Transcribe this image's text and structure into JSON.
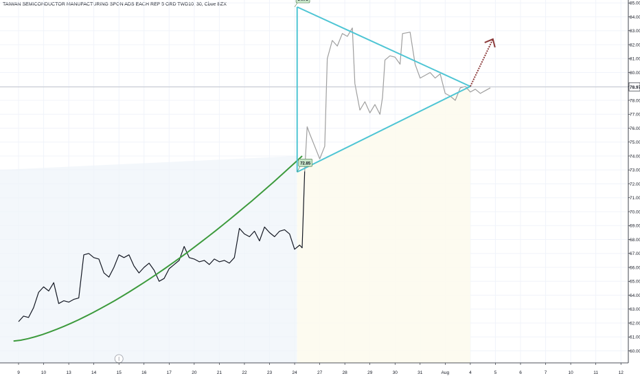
{
  "chart_data": {
    "type": "line",
    "title": "TAIWAN SEMICONDUCTOR MANUFACTURING SPON ADS EACH REP 5 ORD TWD10, 30, Cboe BZX",
    "ylim": [
      59.8,
      85.6
    ],
    "y_ticks": [
      "60.00",
      "61.00",
      "62.00",
      "63.00",
      "64.00",
      "65.00",
      "66.00",
      "67.00",
      "68.00",
      "69.00",
      "70.00",
      "71.00",
      "72.00",
      "73.00",
      "74.00",
      "75.00",
      "76.00",
      "77.00",
      "78.00",
      "79.00",
      "80.00",
      "81.00",
      "82.00",
      "83.00",
      "84.00",
      "85.00"
    ],
    "x_ticks": [
      "9",
      "10",
      "13",
      "14",
      "15",
      "16",
      "17",
      "20",
      "21",
      "22",
      "23",
      "24",
      "27",
      "28",
      "29",
      "30",
      "31",
      "Aug",
      "4",
      "5",
      "6",
      "7",
      "10",
      "11",
      "12"
    ],
    "current_price_label": "78.97",
    "current_price": 78.97,
    "flags": [
      {
        "label": "84.71",
        "index": 11,
        "price": 84.71
      },
      {
        "label": "72.85",
        "index": 11.1,
        "price": 72.85
      }
    ],
    "series": [
      {
        "style": "dark",
        "points": [
          [
            0,
            62.1
          ],
          [
            0.2,
            62.5
          ],
          [
            0.4,
            62.4
          ],
          [
            0.6,
            63.1
          ],
          [
            0.8,
            64.2
          ],
          [
            1.0,
            64.6
          ],
          [
            1.2,
            64.3
          ],
          [
            1.4,
            64.9
          ],
          [
            1.6,
            63.4
          ],
          [
            1.8,
            63.6
          ],
          [
            2.0,
            63.5
          ],
          [
            2.2,
            63.7
          ],
          [
            2.4,
            63.8
          ],
          [
            2.6,
            66.9
          ],
          [
            2.8,
            67.0
          ],
          [
            3.0,
            66.7
          ],
          [
            3.2,
            66.6
          ],
          [
            3.4,
            65.6
          ],
          [
            3.6,
            65.3
          ],
          [
            3.8,
            66.0
          ],
          [
            4.0,
            66.9
          ],
          [
            4.2,
            66.7
          ],
          [
            4.4,
            66.9
          ],
          [
            4.6,
            66.1
          ],
          [
            4.8,
            65.6
          ],
          [
            5.0,
            66.0
          ],
          [
            5.2,
            66.3
          ],
          [
            5.4,
            65.8
          ],
          [
            5.6,
            65.0
          ],
          [
            5.8,
            65.2
          ],
          [
            6.0,
            65.9
          ],
          [
            6.2,
            66.2
          ],
          [
            6.4,
            66.5
          ],
          [
            6.6,
            67.5
          ],
          [
            6.8,
            66.7
          ],
          [
            7.0,
            66.6
          ],
          [
            7.2,
            66.4
          ],
          [
            7.4,
            66.5
          ],
          [
            7.6,
            66.2
          ],
          [
            7.8,
            66.6
          ],
          [
            8.0,
            66.4
          ],
          [
            8.2,
            66.5
          ],
          [
            8.4,
            66.3
          ],
          [
            8.6,
            66.7
          ],
          [
            8.8,
            68.8
          ],
          [
            9.0,
            68.4
          ],
          [
            9.2,
            68.2
          ],
          [
            9.4,
            68.6
          ],
          [
            9.6,
            67.9
          ],
          [
            9.8,
            68.9
          ],
          [
            10.0,
            68.5
          ],
          [
            10.2,
            68.2
          ],
          [
            10.4,
            68.6
          ],
          [
            10.6,
            68.7
          ],
          [
            10.8,
            68.4
          ],
          [
            11.0,
            67.3
          ],
          [
            11.2,
            67.6
          ],
          [
            11.3,
            67.4
          ],
          [
            11.4,
            72.9
          ]
        ]
      },
      {
        "style": "light",
        "points": [
          [
            11.4,
            72.9
          ],
          [
            11.5,
            76.1
          ],
          [
            11.6,
            75.6
          ],
          [
            11.8,
            74.7
          ],
          [
            12.0,
            73.8
          ],
          [
            12.2,
            74.7
          ],
          [
            12.3,
            81.0
          ],
          [
            12.5,
            82.3
          ],
          [
            12.7,
            81.9
          ],
          [
            12.9,
            82.8
          ],
          [
            13.1,
            82.6
          ],
          [
            13.3,
            83.2
          ],
          [
            13.4,
            79.2
          ],
          [
            13.6,
            77.3
          ],
          [
            13.8,
            77.9
          ],
          [
            14.0,
            77.1
          ],
          [
            14.2,
            77.7
          ],
          [
            14.4,
            77.0
          ],
          [
            14.5,
            78.2
          ],
          [
            14.6,
            80.9
          ],
          [
            14.8,
            81.2
          ],
          [
            15.0,
            81.1
          ],
          [
            15.2,
            80.6
          ],
          [
            15.3,
            82.8
          ],
          [
            15.6,
            82.9
          ],
          [
            15.8,
            80.6
          ],
          [
            16.0,
            79.6
          ],
          [
            16.2,
            79.8
          ],
          [
            16.4,
            80.0
          ],
          [
            16.6,
            79.6
          ],
          [
            16.8,
            79.9
          ],
          [
            17.0,
            78.5
          ],
          [
            17.2,
            78.3
          ],
          [
            17.4,
            78.0
          ],
          [
            17.6,
            78.9
          ],
          [
            17.8,
            79.0
          ],
          [
            18.0,
            78.6
          ],
          [
            18.2,
            78.8
          ],
          [
            18.4,
            78.5
          ],
          [
            18.6,
            78.7
          ],
          [
            18.8,
            78.9
          ]
        ]
      }
    ]
  }
}
